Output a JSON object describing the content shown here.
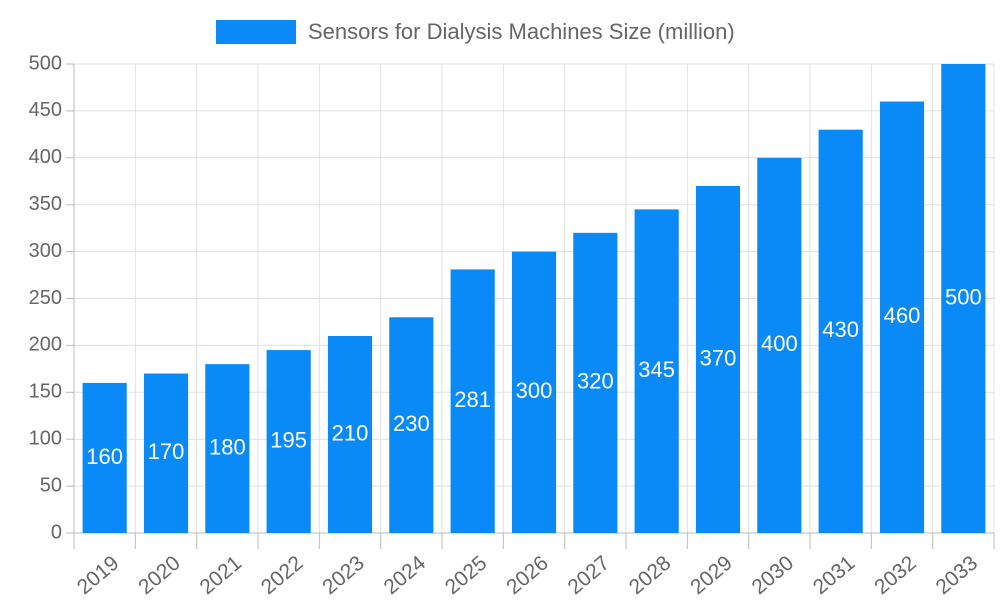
{
  "chart_data": {
    "type": "bar",
    "categories": [
      "2019",
      "2020",
      "2021",
      "2022",
      "2023",
      "2024",
      "2025",
      "2026",
      "2027",
      "2028",
      "2029",
      "2030",
      "2031",
      "2032",
      "2033"
    ],
    "series": [
      {
        "name": "Sensors for Dialysis Machines Size (million)",
        "color": "#0a8af6",
        "values": [
          160,
          170,
          180,
          195,
          210,
          230,
          281,
          300,
          320,
          345,
          370,
          400,
          430,
          460,
          500
        ]
      }
    ],
    "ylim": [
      0,
      500
    ],
    "yticks": [
      0,
      50,
      100,
      150,
      200,
      250,
      300,
      350,
      400,
      450,
      500
    ],
    "grid": true,
    "legend": "top"
  }
}
